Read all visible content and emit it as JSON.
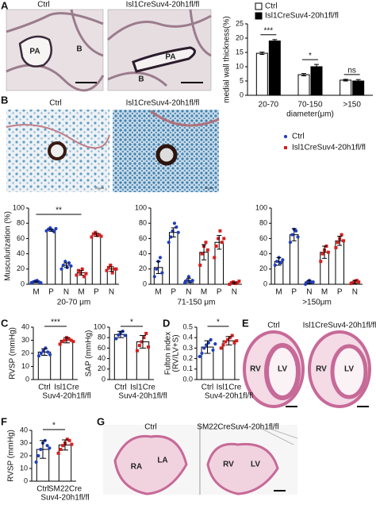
{
  "panel_letters": [
    "A",
    "B",
    "C",
    "D",
    "E",
    "F",
    "G"
  ],
  "image_labels": [
    "Ctrl",
    "Isl1CreSuv4-20h1fl/fl",
    "PA",
    "B",
    "PA",
    "B",
    "Ctrl",
    "Isl1CreSuv4-20h1fl/fl",
    "Ctrl",
    "Isl1CreSuv4-20h1fl/fl",
    "RV",
    "LV",
    "RV",
    "LV",
    "Ctrl",
    "SM22CreSuv4-20h1fl/fl",
    "RA",
    "LA",
    "RV",
    "LV",
    "20 μm",
    "20 μm"
  ],
  "chart_data": [
    {
      "type": "bar",
      "ylabel": "medial wall thickness(%)",
      "xlabel": "diameter(μm)",
      "categories": [
        "20-70",
        "70-150",
        ">150"
      ],
      "ylim": [
        0,
        25
      ],
      "yticks": [
        0,
        5,
        10,
        15,
        20,
        25
      ],
      "series": [
        {
          "name": "Ctrl",
          "color": "#ffffff",
          "values": [
            14.7,
            7.2,
            5.3
          ],
          "errors": [
            0.4,
            0.4,
            0.3
          ]
        },
        {
          "name": "Isl1CreSuv4-20h1fl/fl",
          "color": "#000000",
          "values": [
            19.0,
            10.0,
            5.0
          ],
          "errors": [
            0.5,
            0.8,
            0.5
          ]
        }
      ],
      "annotations": [
        "***",
        "*",
        "ns"
      ]
    },
    {
      "type": "dotbar_grouped",
      "ylabel": "Musculurization (%)",
      "subtitle": "20-70 μm",
      "categories": [
        "M",
        "P",
        "N"
      ],
      "ylim": [
        0,
        100
      ],
      "yticks": [
        0,
        20,
        40,
        60,
        80,
        100
      ],
      "series": [
        {
          "color": "#1f3fbf",
          "marker": "circle",
          "values": [
            3,
            71,
            25
          ],
          "errors": [
            1,
            1.5,
            3
          ],
          "points": [
            [
              2,
              3,
              4,
              5,
              3,
              2
            ],
            [
              70,
              72,
              74,
              71,
              69,
              73
            ],
            [
              20,
              25,
              30,
              22,
              28,
              24
            ]
          ]
        },
        {
          "color": "#d42020",
          "marker": "square",
          "values": [
            15,
            65,
            20
          ],
          "errors": [
            3,
            2,
            3
          ],
          "points": [
            [
              12,
              18,
              15,
              20,
              10,
              14
            ],
            [
              62,
              66,
              68,
              64,
              65,
              63
            ],
            [
              18,
              22,
              25,
              15,
              20,
              20
            ]
          ]
        }
      ],
      "annotations": [
        "**"
      ]
    },
    {
      "type": "dotbar_grouped",
      "subtitle": "71-150 μm",
      "categories": [
        "M",
        "P",
        "N"
      ],
      "ylim": [
        0,
        100
      ],
      "yticks": [
        0,
        20,
        40,
        60,
        80,
        100
      ],
      "series": [
        {
          "color": "#1f3fbf",
          "marker": "circle",
          "values": [
            22,
            68,
            5
          ],
          "errors": [
            8,
            6,
            3
          ],
          "points": [
            [
              10,
              20,
              30,
              35,
              15
            ],
            [
              55,
              62,
              70,
              80,
              75,
              68
            ],
            [
              2,
              5,
              10,
              3,
              5
            ]
          ]
        },
        {
          "color": "#d42020",
          "marker": "square",
          "values": [
            42,
            55,
            2
          ],
          "errors": [
            10,
            9,
            1
          ],
          "points": [
            [
              25,
              40,
              50,
              55,
              45
            ],
            [
              35,
              50,
              60,
              70,
              55,
              60
            ],
            [
              0,
              2,
              3,
              1,
              2,
              4
            ]
          ]
        }
      ]
    },
    {
      "type": "dotbar_grouped",
      "subtitle": ">150μm",
      "legend": true,
      "categories": [
        "M",
        "P",
        "N"
      ],
      "ylim": [
        0,
        100
      ],
      "yticks": [
        0,
        20,
        40,
        60,
        80,
        100
      ],
      "series": [
        {
          "name": "Ctrl",
          "color": "#1f3fbf",
          "marker": "circle",
          "values": [
            30,
            65,
            3
          ],
          "errors": [
            5,
            8,
            2
          ],
          "points": [
            [
              25,
              30,
              35,
              28,
              32
            ],
            [
              55,
              65,
              72,
              70,
              62
            ],
            [
              0,
              3,
              5,
              2,
              3
            ]
          ]
        },
        {
          "name": "Isl1CreSuv4-20h1fl/fl",
          "color": "#d42020",
          "marker": "square",
          "values": [
            42,
            57,
            3
          ],
          "errors": [
            8,
            6,
            2
          ],
          "points": [
            [
              30,
              40,
              45,
              50,
              42
            ],
            [
              48,
              55,
              60,
              65,
              57
            ],
            [
              1,
              2,
              4,
              5,
              3
            ]
          ]
        }
      ]
    },
    {
      "type": "dotbar",
      "ylabel": "RVSP (mmHg)",
      "categories": [
        "Ctrl",
        [
          "Isl1Cre",
          "Suv4-20h1fl/fl"
        ]
      ],
      "ylim": [
        0,
        40
      ],
      "yticks": [
        0,
        10,
        20,
        30,
        40
      ],
      "colors": [
        "#1f3fbf",
        "#d42020"
      ],
      "markers": [
        "circle",
        "square"
      ],
      "values": [
        21,
        30
      ],
      "errors": [
        2.5,
        2
      ],
      "points": [
        [
          18,
          20,
          22,
          24,
          21,
          19
        ],
        [
          27,
          29,
          30,
          32,
          31,
          30,
          29
        ]
      ],
      "annotations": [
        "***"
      ]
    },
    {
      "type": "dotbar",
      "ylabel": "SAP (mmHg)",
      "categories": [
        "Ctrl",
        [
          "Isl1Cre",
          "Suv4-20h1fl/fl"
        ]
      ],
      "ylim": [
        0,
        100
      ],
      "yticks": [
        0,
        20,
        40,
        60,
        80,
        100
      ],
      "colors": [
        "#1f3fbf",
        "#d42020"
      ],
      "markers": [
        "circle",
        "square"
      ],
      "values": [
        86,
        72
      ],
      "errors": [
        6,
        12
      ],
      "points": [
        [
          78,
          85,
          90,
          92,
          84
        ],
        [
          55,
          65,
          72,
          80,
          88,
          62
        ]
      ],
      "annotations": [
        "*"
      ]
    },
    {
      "type": "dotbar",
      "ylabel": [
        "Fulton index",
        "(RV/LV+S)"
      ],
      "categories": [
        "Ctrl",
        [
          "Isl1Cre",
          "Suv4-20h1fl/fl"
        ]
      ],
      "ylim": [
        0,
        0.5
      ],
      "yticks": [
        {
          "value": 0,
          "label": "0.0"
        },
        0.1,
        0.2,
        0.3,
        0.4,
        0.5
      ],
      "colors": [
        "#1f3fbf",
        "#d42020"
      ],
      "markers": [
        "circle",
        "square"
      ],
      "values": [
        0.31,
        0.37
      ],
      "errors": [
        0.06,
        0.04
      ],
      "points": [
        [
          0.22,
          0.25,
          0.3,
          0.33,
          0.35,
          0.38,
          0.28,
          0.34
        ],
        [
          0.3,
          0.33,
          0.36,
          0.38,
          0.4,
          0.42,
          0.35,
          0.37
        ]
      ],
      "annotations": [
        "*"
      ]
    },
    {
      "type": "dotbar",
      "ylabel": "RVSP (mmHg)",
      "categories": [
        "Ctrl",
        [
          "SM22Cre",
          "Suv4-20h1fl/fl"
        ]
      ],
      "ylim": [
        0,
        40
      ],
      "yticks": [
        0,
        10,
        20,
        30,
        40
      ],
      "colors": [
        "#1f3fbf",
        "#d42020"
      ],
      "markers": [
        "circle",
        "square"
      ],
      "values": [
        25,
        28.5
      ],
      "errors": [
        7,
        4
      ],
      "points": [
        [
          15,
          20,
          25,
          30,
          32,
          28,
          26
        ],
        [
          22,
          25,
          28,
          30,
          33,
          32,
          29
        ]
      ],
      "annotations": [
        "*"
      ]
    }
  ]
}
